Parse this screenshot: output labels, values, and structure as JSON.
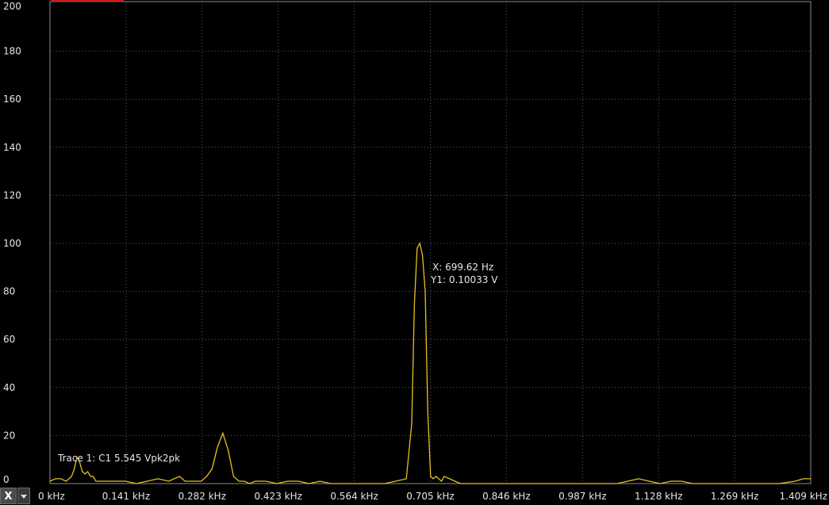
{
  "chart_data": {
    "type": "line",
    "title": "",
    "xlabel": "",
    "ylabel": "",
    "x_unit": "kHz",
    "xlim": [
      0,
      1.409
    ],
    "ylim": [
      0,
      200
    ],
    "grid": true,
    "x_ticks": [
      "0 kHz",
      "0.141 kHz",
      "0.282 kHz",
      "0.423 kHz",
      "0.564 kHz",
      "0.705 kHz",
      "0.846 kHz",
      "0.987 kHz",
      "1.128 kHz",
      "1.269 kHz",
      "1.409 kHz"
    ],
    "y_ticks": [
      "0",
      "20",
      "40",
      "60",
      "80",
      "100",
      "120",
      "140",
      "160",
      "180",
      "200"
    ],
    "series": [
      {
        "color": "#e8c020",
        "x": [
          0,
          0.01,
          0.02,
          0.03,
          0.04,
          0.045,
          0.05,
          0.055,
          0.06,
          0.065,
          0.07,
          0.075,
          0.08,
          0.085,
          0.09,
          0.095,
          0.1,
          0.11,
          0.12,
          0.14,
          0.16,
          0.18,
          0.2,
          0.22,
          0.24,
          0.25,
          0.26,
          0.27,
          0.28,
          0.29,
          0.3,
          0.31,
          0.32,
          0.33,
          0.34,
          0.35,
          0.36,
          0.37,
          0.38,
          0.4,
          0.42,
          0.44,
          0.46,
          0.48,
          0.5,
          0.52,
          0.54,
          0.58,
          0.6,
          0.62,
          0.64,
          0.66,
          0.67,
          0.675,
          0.68,
          0.685,
          0.69,
          0.695,
          0.6996,
          0.705,
          0.71,
          0.715,
          0.72,
          0.725,
          0.73,
          0.74,
          0.75,
          0.76,
          0.77,
          0.78,
          0.8,
          0.85,
          0.9,
          0.95,
          1.0,
          1.05,
          1.07,
          1.09,
          1.11,
          1.13,
          1.15,
          1.17,
          1.19,
          1.25,
          1.3,
          1.35,
          1.38,
          1.395,
          1.409
        ],
        "values": [
          1,
          2,
          2,
          1,
          3,
          6,
          11,
          9,
          5,
          4,
          5,
          3,
          3,
          1,
          1,
          1,
          1,
          1,
          1,
          1,
          0,
          1,
          2,
          1,
          3,
          1,
          1,
          1,
          1,
          3,
          6,
          15,
          21,
          14,
          3,
          1,
          1,
          0,
          1,
          1,
          0,
          1,
          1,
          0,
          1,
          0,
          0,
          0,
          0,
          0,
          1,
          2,
          25,
          75,
          98,
          100,
          95,
          80,
          30,
          3,
          2,
          3,
          2,
          1,
          3,
          2,
          1,
          0,
          0,
          0,
          0,
          0,
          0,
          0,
          0,
          0,
          1,
          2,
          1,
          0,
          1,
          1,
          0,
          0,
          0,
          0,
          1,
          2,
          2
        ]
      }
    ],
    "annotations": {
      "marker_x": "X: 699.62 Hz",
      "marker_y": "Y1: 0.10033 V",
      "trace_label": "Trace 1: C1 5.545 Vpk2pk"
    }
  },
  "controls": {
    "axis_button_label": "X"
  }
}
